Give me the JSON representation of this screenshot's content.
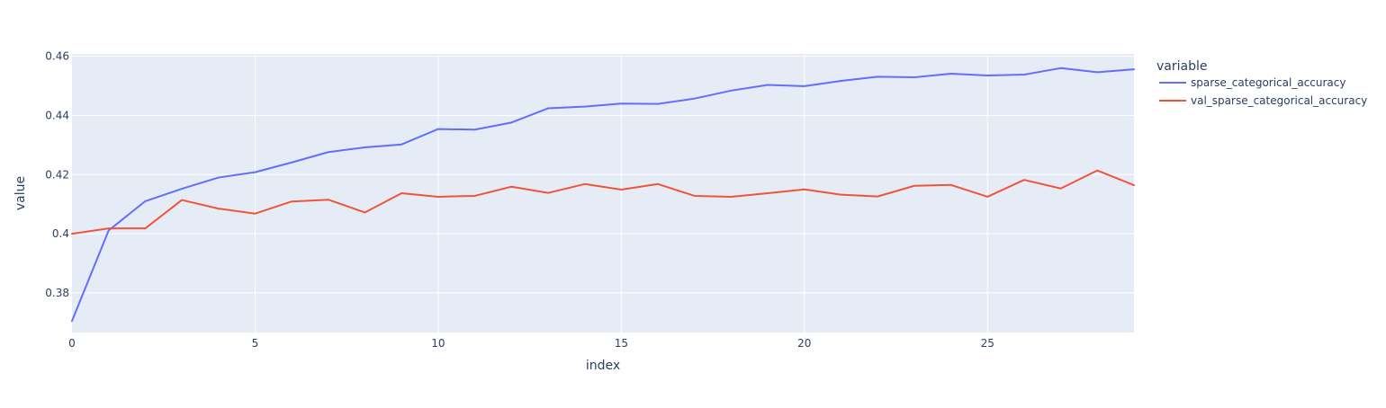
{
  "chart_data": {
    "type": "line",
    "xlabel": "index",
    "ylabel": "value",
    "xlim": [
      0,
      29
    ],
    "ylim": [
      0.3666,
      0.4608
    ],
    "xticks": [
      0,
      5,
      10,
      15,
      20,
      25
    ],
    "yticks": [
      0.38,
      0.4,
      0.42,
      0.44,
      0.46
    ],
    "ytick_labels": [
      "0.38",
      "0.4",
      "0.42",
      "0.44",
      "0.46"
    ],
    "grid": true,
    "legend": {
      "title": "variable",
      "placement": "right"
    },
    "x": [
      0,
      1,
      2,
      3,
      4,
      5,
      6,
      7,
      8,
      9,
      10,
      11,
      12,
      13,
      14,
      15,
      16,
      17,
      18,
      19,
      20,
      21,
      22,
      23,
      24,
      25,
      26,
      27,
      28,
      29
    ],
    "series": [
      {
        "name": "sparse_categorical_accuracy",
        "color": "#636efa",
        "values": [
          0.3705,
          0.4011,
          0.411,
          0.4152,
          0.419,
          0.4208,
          0.4241,
          0.4276,
          0.4292,
          0.4302,
          0.4354,
          0.4352,
          0.4376,
          0.4424,
          0.443,
          0.444,
          0.4439,
          0.4457,
          0.4484,
          0.4503,
          0.4499,
          0.4517,
          0.4531,
          0.4529,
          0.4541,
          0.4535,
          0.4538,
          0.456,
          0.4546,
          0.4556
        ]
      },
      {
        "name": "val_sparse_categorical_accuracy",
        "color": "#ef553b",
        "values": [
          0.4,
          0.4018,
          0.4018,
          0.4114,
          0.4085,
          0.4068,
          0.4109,
          0.4115,
          0.4072,
          0.4137,
          0.4125,
          0.4128,
          0.4159,
          0.4138,
          0.4168,
          0.4149,
          0.4168,
          0.4128,
          0.4125,
          0.4137,
          0.415,
          0.4132,
          0.4126,
          0.4162,
          0.4165,
          0.4125,
          0.4182,
          0.4153,
          0.4214,
          0.4164
        ]
      }
    ]
  }
}
